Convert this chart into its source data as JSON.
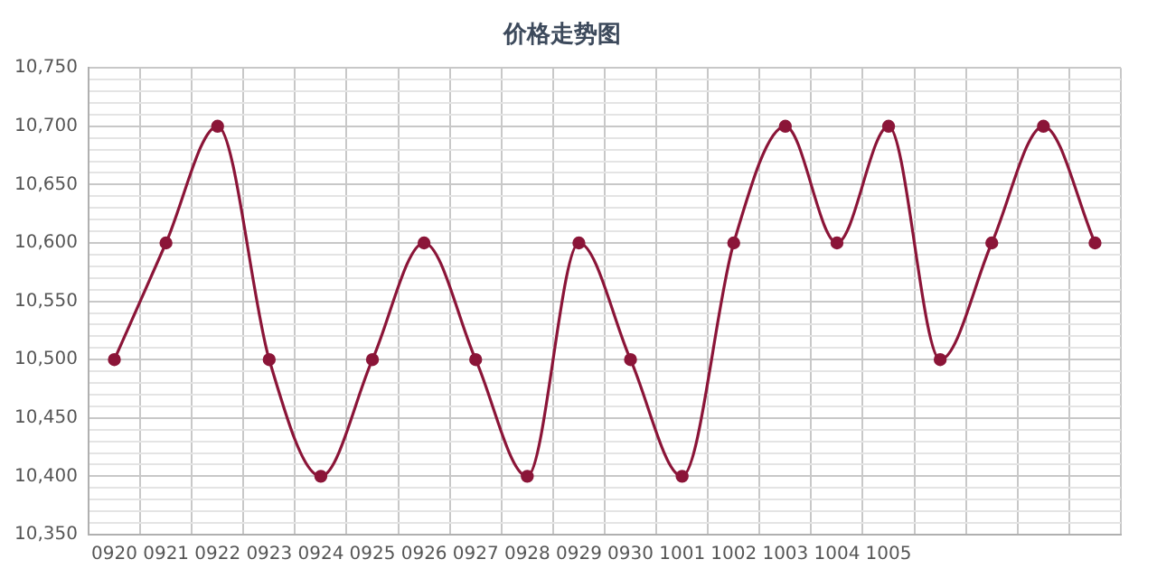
{
  "chart_data": {
    "type": "line",
    "title": "价格走势图",
    "categories": [
      "0920",
      "0921",
      "0922",
      "0923",
      "0924",
      "0925",
      "0926",
      "0927",
      "0928",
      "0929",
      "0930",
      "1001",
      "1002",
      "1003",
      "1004",
      "1005",
      null,
      null,
      null,
      null
    ],
    "series": [
      {
        "color": "#8b1538",
        "values": [
          10500,
          10600,
          10700,
          10500,
          10400,
          10500,
          10600,
          10500,
          10400,
          10600,
          10500,
          10400,
          10600,
          10700,
          10600,
          10700,
          10500,
          10600,
          10700,
          10600
        ]
      }
    ],
    "ylim": [
      10350,
      10750
    ],
    "yticks": [
      {
        "value": 10350,
        "label": "10,350"
      },
      {
        "value": 10360,
        "label": null
      },
      {
        "value": 10370,
        "label": null
      },
      {
        "value": 10380,
        "label": null
      },
      {
        "value": 10390,
        "label": null
      },
      {
        "value": 10400,
        "label": "10,400"
      },
      {
        "value": 10410,
        "label": null
      },
      {
        "value": 10420,
        "label": null
      },
      {
        "value": 10430,
        "label": null
      },
      {
        "value": 10440,
        "label": null
      },
      {
        "value": 10450,
        "label": "10,450"
      },
      {
        "value": 10460,
        "label": null
      },
      {
        "value": 10470,
        "label": null
      },
      {
        "value": 10480,
        "label": null
      },
      {
        "value": 10490,
        "label": null
      },
      {
        "value": 10500,
        "label": "10,500"
      },
      {
        "value": 10510,
        "label": null
      },
      {
        "value": 10520,
        "label": null
      },
      {
        "value": 10530,
        "label": null
      },
      {
        "value": 10540,
        "label": null
      },
      {
        "value": 10550,
        "label": "10,550"
      },
      {
        "value": 10560,
        "label": null
      },
      {
        "value": 10570,
        "label": null
      },
      {
        "value": 10580,
        "label": null
      },
      {
        "value": 10590,
        "label": null
      },
      {
        "value": 10600,
        "label": "10,600"
      },
      {
        "value": 10610,
        "label": null
      },
      {
        "value": 10620,
        "label": null
      },
      {
        "value": 10630,
        "label": null
      },
      {
        "value": 10640,
        "label": null
      },
      {
        "value": 10650,
        "label": "10,650"
      },
      {
        "value": 10660,
        "label": null
      },
      {
        "value": 10670,
        "label": null
      },
      {
        "value": 10680,
        "label": null
      },
      {
        "value": 10690,
        "label": null
      },
      {
        "value": 10700,
        "label": "10,700"
      },
      {
        "value": 10710,
        "label": null
      },
      {
        "value": 10720,
        "label": null
      },
      {
        "value": 10730,
        "label": null
      },
      {
        "value": 10740,
        "label": null
      },
      {
        "value": 10750,
        "label": "10,750"
      }
    ],
    "grid": true,
    "legend": false,
    "marker": "circle",
    "line_style": "solid"
  }
}
